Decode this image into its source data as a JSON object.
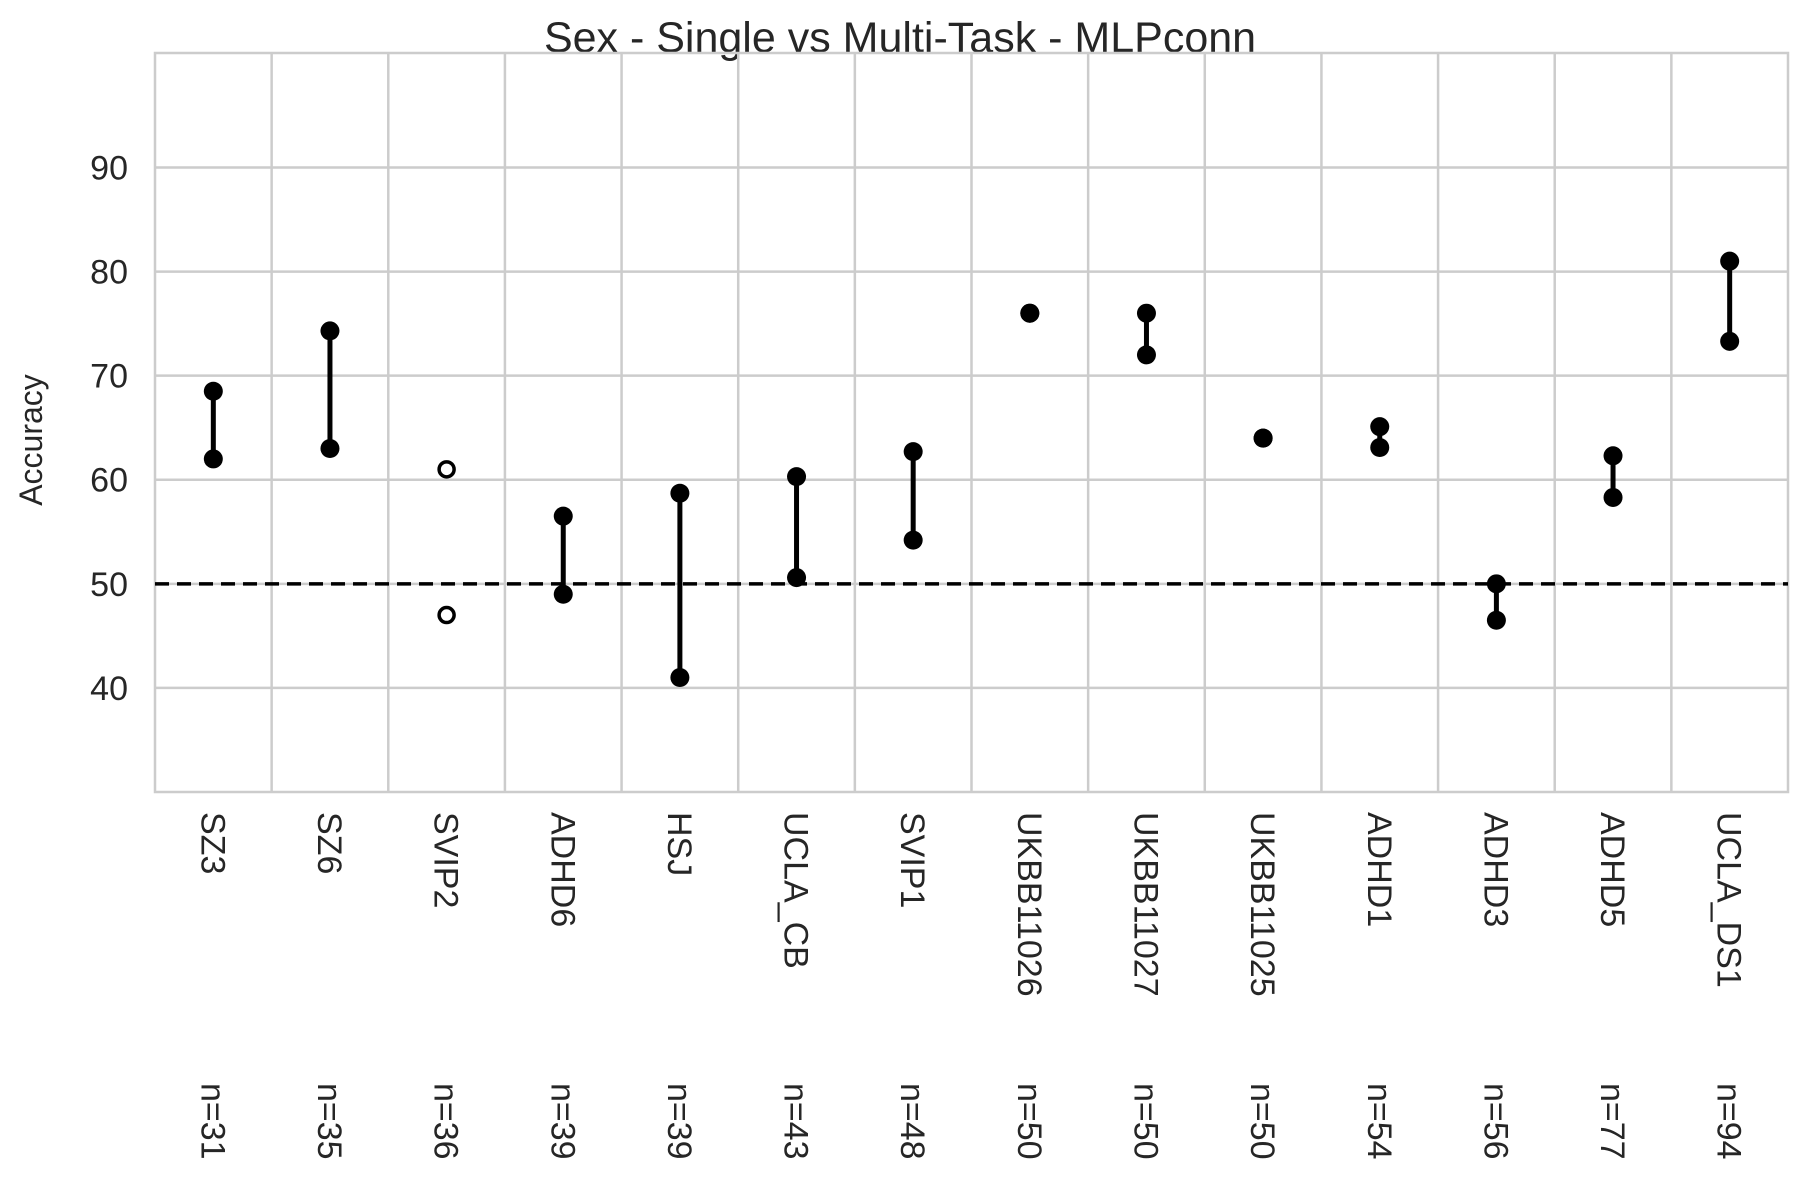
{
  "chart_data": {
    "type": "scatter",
    "title": "Sex - Single vs Multi-Task - MLPconn",
    "xlabel": "",
    "ylabel": "Accuracy",
    "ylim": [
      30,
      101
    ],
    "yticks": [
      40,
      50,
      60,
      70,
      80,
      90
    ],
    "grid": true,
    "reference_line": {
      "y": 50,
      "style": "dashed",
      "color": "#000000"
    },
    "categories": [
      "SZ3",
      "SZ6",
      "SVIP2",
      "ADHD6",
      "HSJ",
      "UCLA_CB",
      "SVIP1",
      "UKBB11026",
      "UKBB11027",
      "UKBB11025",
      "ADHD1",
      "ADHD3",
      "ADHD5",
      "UCLA_DS1"
    ],
    "sample_sizes": [
      "n=31",
      "n=35",
      "n=36",
      "n=39",
      "n=39",
      "n=43",
      "n=48",
      "n=50",
      "n=50",
      "n=50",
      "n=54",
      "n=56",
      "n=77",
      "n=94"
    ],
    "pairs": [
      {
        "a": 68.5,
        "b": 62.0,
        "filled": true,
        "connected": true
      },
      {
        "a": 74.3,
        "b": 63.0,
        "filled": true,
        "connected": true
      },
      {
        "a": 61.0,
        "b": 47.0,
        "filled": false,
        "connected": false
      },
      {
        "a": 56.5,
        "b": 49.0,
        "filled": true,
        "connected": true
      },
      {
        "a": 58.7,
        "b": 41.0,
        "filled": true,
        "connected": true
      },
      {
        "a": 60.3,
        "b": 50.6,
        "filled": true,
        "connected": true
      },
      {
        "a": 62.7,
        "b": 54.2,
        "filled": true,
        "connected": true
      },
      {
        "a": 76.0,
        "b": 76.0,
        "filled": true,
        "connected": true
      },
      {
        "a": 76.0,
        "b": 72.0,
        "filled": true,
        "connected": true
      },
      {
        "a": 64.0,
        "b": 64.0,
        "filled": true,
        "connected": true
      },
      {
        "a": 65.1,
        "b": 63.1,
        "filled": true,
        "connected": true
      },
      {
        "a": 50.0,
        "b": 46.5,
        "filled": true,
        "connected": true
      },
      {
        "a": 62.3,
        "b": 58.3,
        "filled": true,
        "connected": true
      },
      {
        "a": 81.0,
        "b": 73.3,
        "filled": true,
        "connected": true
      }
    ],
    "colors": {
      "marker": "#000000",
      "grid": "#cccccc",
      "text": "#262626",
      "background": "#ffffff"
    }
  }
}
